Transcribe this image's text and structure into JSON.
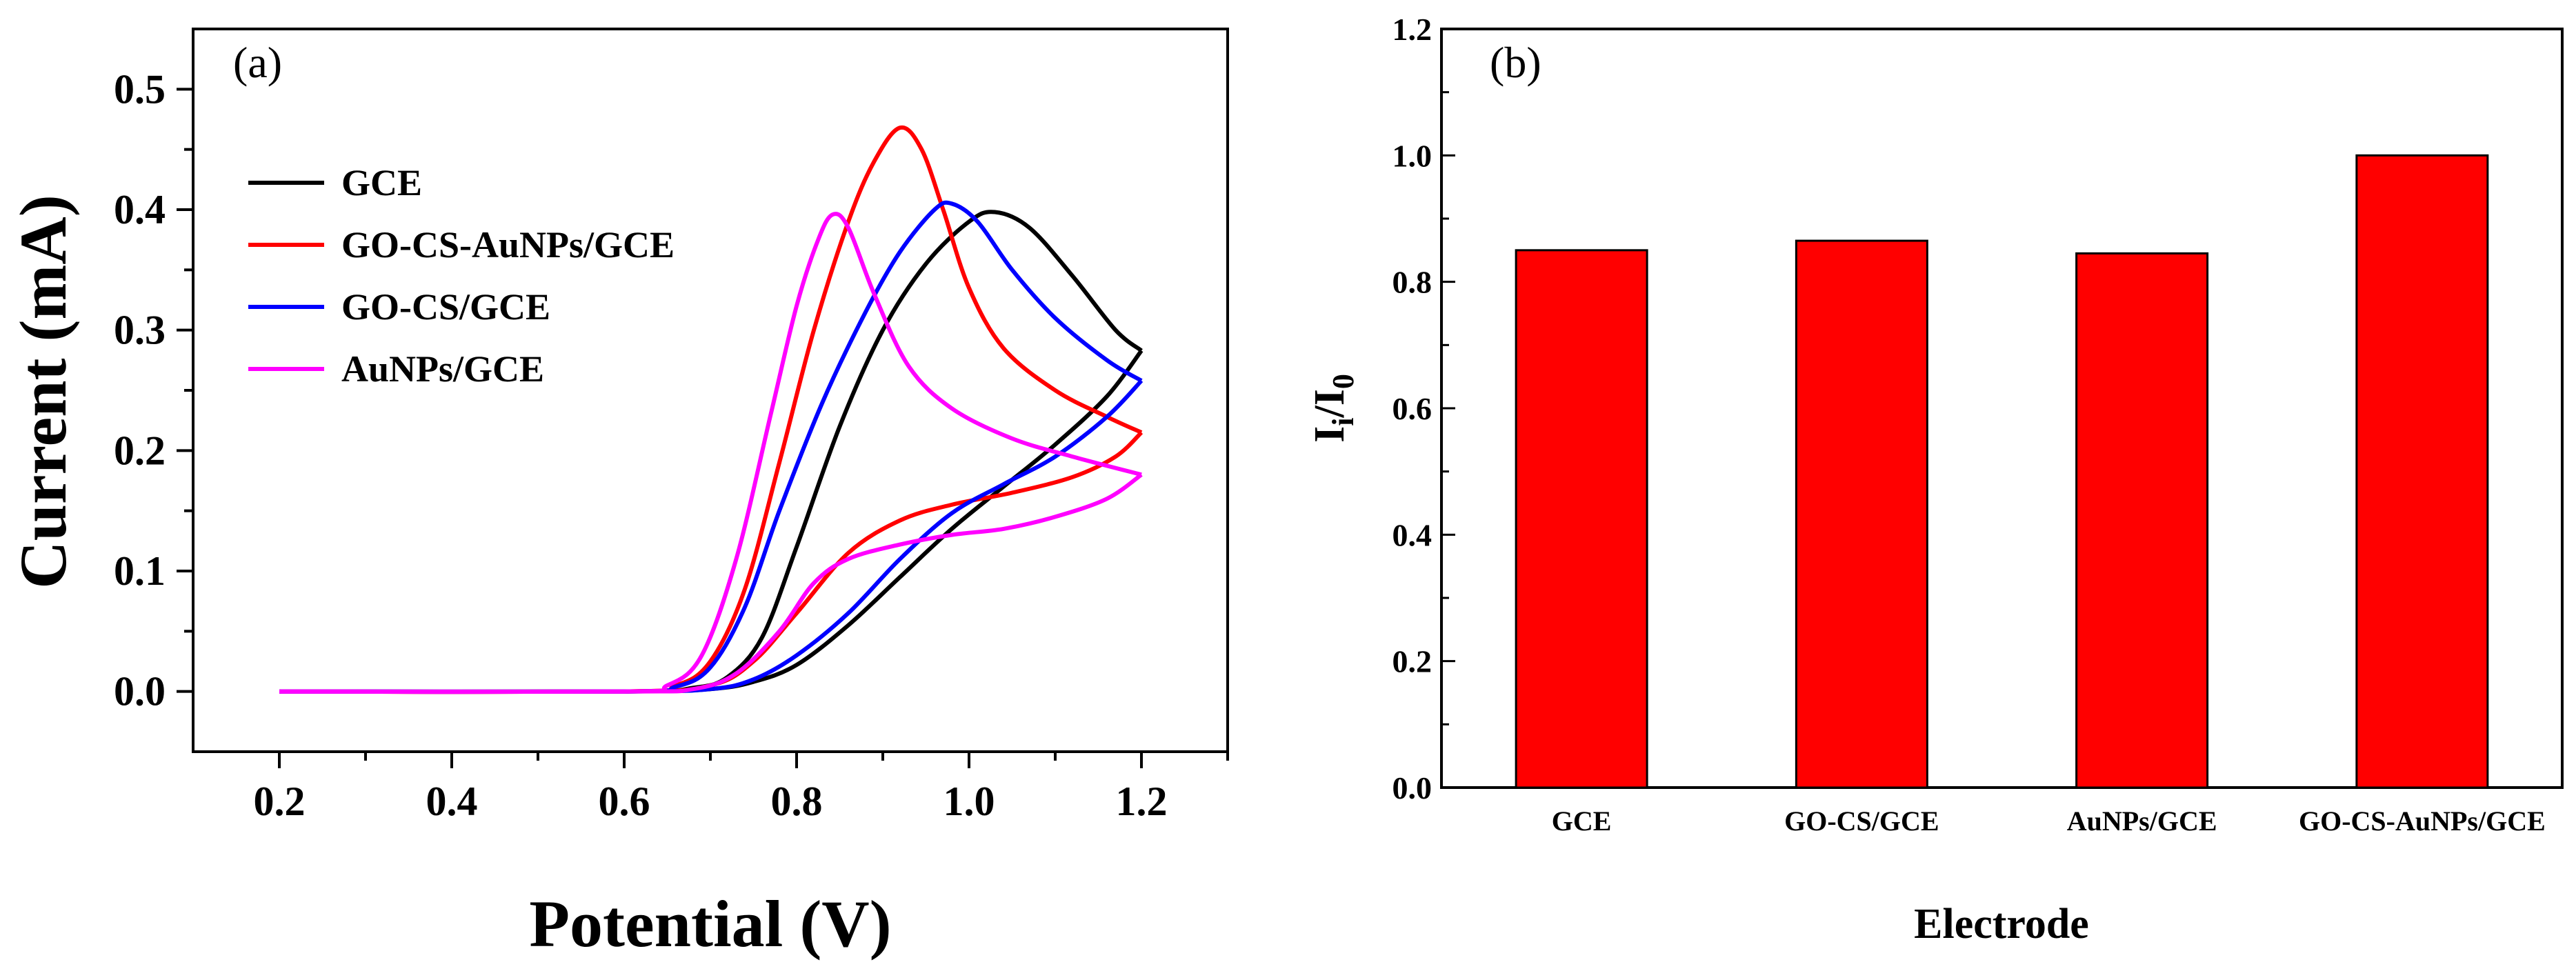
{
  "chart_data": [
    {
      "panel": "(a)",
      "type": "line",
      "xlabel": "Potential (V)",
      "ylabel": "Current (mA)",
      "xlim": [
        0.1,
        1.3
      ],
      "ylim": [
        -0.05,
        0.55
      ],
      "xticks": [
        "0.2",
        "0.4",
        "0.6",
        "0.8",
        "1.0",
        "1.2"
      ],
      "yticks": [
        "0.0",
        "0.1",
        "0.2",
        "0.3",
        "0.4",
        "0.5"
      ],
      "legend_position": "upper-left",
      "series": [
        {
          "name": "GCE",
          "color": "#000000",
          "forward": [
            [
              0.2,
              0.0
            ],
            [
              0.6,
              0.0
            ],
            [
              0.68,
              0.003
            ],
            [
              0.72,
              0.012
            ],
            [
              0.76,
              0.045
            ],
            [
              0.8,
              0.12
            ],
            [
              0.85,
              0.22
            ],
            [
              0.9,
              0.3
            ],
            [
              0.95,
              0.355
            ],
            [
              1.0,
              0.39
            ],
            [
              1.03,
              0.398
            ],
            [
              1.07,
              0.385
            ],
            [
              1.12,
              0.345
            ],
            [
              1.17,
              0.3
            ],
            [
              1.2,
              0.283
            ]
          ],
          "reverse": [
            [
              1.2,
              0.283
            ],
            [
              1.16,
              0.245
            ],
            [
              1.1,
              0.205
            ],
            [
              1.04,
              0.17
            ],
            [
              0.98,
              0.135
            ],
            [
              0.92,
              0.095
            ],
            [
              0.86,
              0.055
            ],
            [
              0.8,
              0.022
            ],
            [
              0.75,
              0.008
            ],
            [
              0.7,
              0.002
            ],
            [
              0.6,
              0.0
            ],
            [
              0.2,
              0.0
            ]
          ]
        },
        {
          "name": "GO-CS-AuNPs/GCE",
          "color": "#ff0000",
          "forward": [
            [
              0.2,
              0.0
            ],
            [
              0.6,
              0.0
            ],
            [
              0.66,
              0.005
            ],
            [
              0.7,
              0.025
            ],
            [
              0.74,
              0.085
            ],
            [
              0.78,
              0.19
            ],
            [
              0.82,
              0.3
            ],
            [
              0.86,
              0.39
            ],
            [
              0.89,
              0.44
            ],
            [
              0.92,
              0.468
            ],
            [
              0.945,
              0.45
            ],
            [
              0.97,
              0.4
            ],
            [
              1.0,
              0.335
            ],
            [
              1.04,
              0.285
            ],
            [
              1.1,
              0.25
            ],
            [
              1.16,
              0.228
            ],
            [
              1.2,
              0.215
            ]
          ],
          "reverse": [
            [
              1.2,
              0.215
            ],
            [
              1.17,
              0.195
            ],
            [
              1.12,
              0.178
            ],
            [
              1.05,
              0.165
            ],
            [
              0.98,
              0.155
            ],
            [
              0.92,
              0.142
            ],
            [
              0.86,
              0.115
            ],
            [
              0.8,
              0.065
            ],
            [
              0.75,
              0.025
            ],
            [
              0.7,
              0.005
            ],
            [
              0.6,
              0.0
            ],
            [
              0.2,
              0.0
            ]
          ]
        },
        {
          "name": "GO-CS/GCE",
          "color": "#0000ff",
          "forward": [
            [
              0.2,
              0.0
            ],
            [
              0.6,
              0.0
            ],
            [
              0.66,
              0.004
            ],
            [
              0.7,
              0.02
            ],
            [
              0.74,
              0.07
            ],
            [
              0.78,
              0.15
            ],
            [
              0.83,
              0.24
            ],
            [
              0.88,
              0.315
            ],
            [
              0.92,
              0.365
            ],
            [
              0.96,
              0.4
            ],
            [
              0.98,
              0.405
            ],
            [
              1.01,
              0.39
            ],
            [
              1.05,
              0.35
            ],
            [
              1.1,
              0.31
            ],
            [
              1.16,
              0.275
            ],
            [
              1.2,
              0.258
            ]
          ],
          "reverse": [
            [
              1.2,
              0.258
            ],
            [
              1.16,
              0.228
            ],
            [
              1.1,
              0.195
            ],
            [
              1.04,
              0.172
            ],
            [
              0.98,
              0.148
            ],
            [
              0.92,
              0.11
            ],
            [
              0.86,
              0.065
            ],
            [
              0.8,
              0.03
            ],
            [
              0.75,
              0.01
            ],
            [
              0.7,
              0.002
            ],
            [
              0.6,
              0.0
            ],
            [
              0.2,
              0.0
            ]
          ]
        },
        {
          "name": "AuNPs/GCE",
          "color": "#ff00ff",
          "forward": [
            [
              0.2,
              0.0
            ],
            [
              0.6,
              0.0
            ],
            [
              0.65,
              0.005
            ],
            [
              0.69,
              0.03
            ],
            [
              0.73,
              0.11
            ],
            [
              0.77,
              0.23
            ],
            [
              0.8,
              0.32
            ],
            [
              0.825,
              0.375
            ],
            [
              0.842,
              0.396
            ],
            [
              0.86,
              0.385
            ],
            [
              0.89,
              0.33
            ],
            [
              0.93,
              0.27
            ],
            [
              0.98,
              0.235
            ],
            [
              1.05,
              0.21
            ],
            [
              1.12,
              0.195
            ],
            [
              1.2,
              0.18
            ]
          ],
          "reverse": [
            [
              1.2,
              0.18
            ],
            [
              1.16,
              0.16
            ],
            [
              1.1,
              0.145
            ],
            [
              1.04,
              0.135
            ],
            [
              0.98,
              0.13
            ],
            [
              0.92,
              0.122
            ],
            [
              0.86,
              0.11
            ],
            [
              0.82,
              0.09
            ],
            [
              0.78,
              0.05
            ],
            [
              0.73,
              0.015
            ],
            [
              0.68,
              0.002
            ],
            [
              0.6,
              0.0
            ],
            [
              0.2,
              0.0
            ]
          ]
        }
      ]
    },
    {
      "panel": "(b)",
      "type": "bar",
      "xlabel": "Electrode",
      "ylabel_main": "I",
      "ylabel_sub1": "i",
      "ylabel_slash": "/I",
      "ylabel_sub2": "0",
      "ylim": [
        0.0,
        1.2
      ],
      "yticks": [
        "0.0",
        "0.2",
        "0.4",
        "0.6",
        "0.8",
        "1.0",
        "1.2"
      ],
      "categories": [
        "GCE",
        "GO-CS/GCE",
        "AuNPs/GCE",
        "GO-CS-AuNPs/GCE"
      ],
      "values": [
        0.85,
        0.865,
        0.845,
        1.0
      ],
      "bar_color": "#ff0000"
    }
  ]
}
